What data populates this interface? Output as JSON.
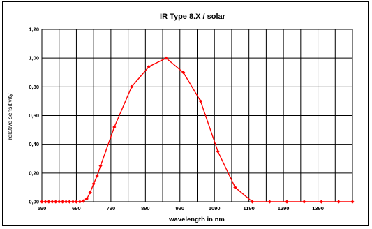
{
  "chart_data": {
    "type": "line",
    "title": "IR Type 8.X / solar",
    "xlabel": "wavelength in nm",
    "ylabel": "relative sensitivity",
    "xlim": [
      590,
      1490
    ],
    "ylim": [
      0,
      1.2
    ],
    "grid": true,
    "legend": "none",
    "x_ticks": [
      "590",
      "690",
      "790",
      "890",
      "990",
      "1090",
      "1190",
      "1290",
      "1390"
    ],
    "x_tick_values": [
      590,
      690,
      790,
      890,
      990,
      1090,
      1190,
      1290,
      1390
    ],
    "x_grid_values": [
      590,
      640,
      690,
      740,
      790,
      840,
      890,
      940,
      990,
      1040,
      1090,
      1140,
      1190,
      1240,
      1290,
      1340,
      1390,
      1440,
      1490
    ],
    "y_ticks": [
      "0,00",
      "0,20",
      "0,40",
      "0,60",
      "0,80",
      "1,00",
      "1,20"
    ],
    "y_tick_values": [
      0,
      0.2,
      0.4,
      0.6,
      0.8,
      1.0,
      1.2
    ],
    "series": [
      {
        "color": "#ff0000",
        "marker": "diamond",
        "x": [
          590,
          600,
          610,
          620,
          630,
          640,
          650,
          660,
          670,
          680,
          690,
          700,
          710,
          720,
          730,
          740,
          750,
          760,
          800,
          850,
          900,
          950,
          1000,
          1050,
          1100,
          1150,
          1200,
          1250,
          1300,
          1350,
          1400,
          1450,
          1490
        ],
        "y": [
          0,
          0,
          0,
          0,
          0,
          0,
          0,
          0,
          0,
          0,
          0,
          0,
          0.005,
          0.02,
          0.065,
          0.125,
          0.18,
          0.25,
          0.52,
          0.8,
          0.94,
          1.0,
          0.9,
          0.7,
          0.35,
          0.1,
          0,
          0,
          0,
          0,
          0,
          0,
          0
        ]
      }
    ]
  }
}
